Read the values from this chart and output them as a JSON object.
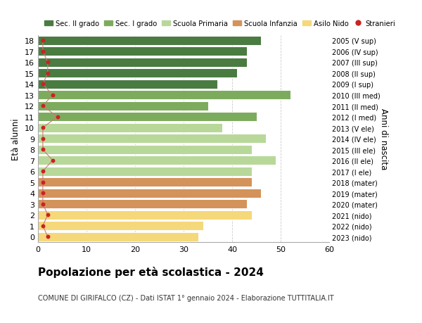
{
  "ages": [
    18,
    17,
    16,
    15,
    14,
    13,
    12,
    11,
    10,
    9,
    8,
    7,
    6,
    5,
    4,
    3,
    2,
    1,
    0
  ],
  "values": [
    46,
    43,
    43,
    41,
    37,
    52,
    35,
    45,
    38,
    47,
    44,
    49,
    44,
    44,
    46,
    43,
    44,
    34,
    33
  ],
  "stranieri": [
    1,
    1,
    2,
    2,
    1,
    3,
    1,
    4,
    1,
    1,
    1,
    3,
    1,
    1,
    1,
    1,
    2,
    1,
    2
  ],
  "bar_colors": [
    "#4a7c42",
    "#4a7c42",
    "#4a7c42",
    "#4a7c42",
    "#4a7c42",
    "#7dab5e",
    "#7dab5e",
    "#7dab5e",
    "#b8d89a",
    "#b8d89a",
    "#b8d89a",
    "#b8d89a",
    "#b8d89a",
    "#d4935a",
    "#d4935a",
    "#d4935a",
    "#f5d87a",
    "#f5d87a",
    "#f5d87a"
  ],
  "right_labels": [
    "2005 (V sup)",
    "2006 (IV sup)",
    "2007 (III sup)",
    "2008 (II sup)",
    "2009 (I sup)",
    "2010 (III med)",
    "2011 (II med)",
    "2012 (I med)",
    "2013 (V ele)",
    "2014 (IV ele)",
    "2015 (III ele)",
    "2016 (II ele)",
    "2017 (I ele)",
    "2018 (mater)",
    "2019 (mater)",
    "2020 (mater)",
    "2021 (nido)",
    "2022 (nido)",
    "2023 (nido)"
  ],
  "legend_labels": [
    "Sec. II grado",
    "Sec. I grado",
    "Scuola Primaria",
    "Scuola Infanzia",
    "Asilo Nido",
    "Stranieri"
  ],
  "legend_colors": [
    "#4a7c42",
    "#7dab5e",
    "#b8d89a",
    "#d4935a",
    "#f5d87a",
    "#cc2222"
  ],
  "title": "Popolazione per età scolastica - 2024",
  "subtitle": "COMUNE DI GIRIFALCO (CZ) - Dati ISTAT 1° gennaio 2024 - Elaborazione TUTTITALIA.IT",
  "ylabel": "Età alunni",
  "right_ylabel": "Anni di nascita",
  "xlim": [
    0,
    60
  ],
  "xticks": [
    0,
    10,
    20,
    30,
    40,
    50,
    60
  ],
  "background_color": "#ffffff",
  "grid_color": "#cccccc",
  "bar_height": 0.82,
  "stranieri_color": "#cc2222",
  "stranieri_line_color": "#cc7777"
}
